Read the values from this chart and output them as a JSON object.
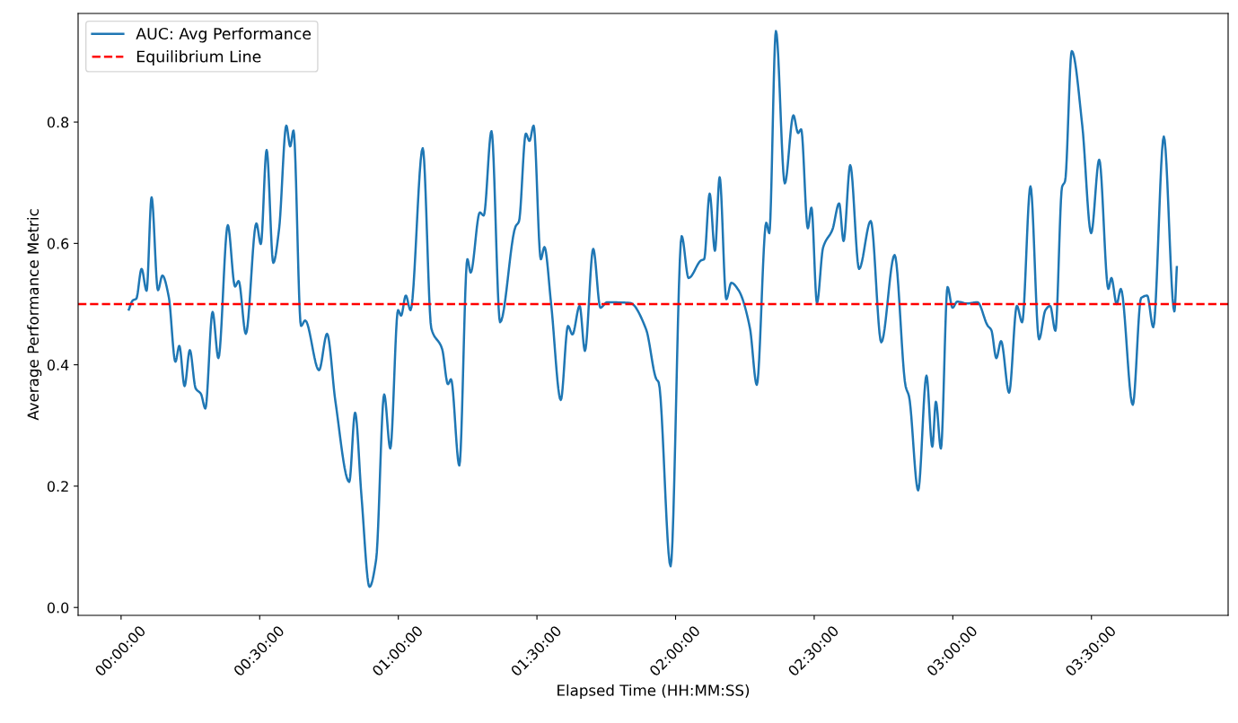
{
  "chart_data": {
    "type": "line",
    "xlabel": "Elapsed Time (HH:MM:SS)",
    "ylabel": "Average Performance Metric",
    "xlim": [
      -0.155,
      3.993
    ],
    "ylim": [
      -0.013,
      0.979
    ],
    "xticks": [
      {
        "value": 0,
        "label": "00:00:00"
      },
      {
        "value": 0.5,
        "label": "00:30:00"
      },
      {
        "value": 1,
        "label": "01:00:00"
      },
      {
        "value": 1.5,
        "label": "01:30:00"
      },
      {
        "value": 2,
        "label": "02:00:00"
      },
      {
        "value": 2.5,
        "label": "02:30:00"
      },
      {
        "value": 3,
        "label": "03:00:00"
      },
      {
        "value": 3.5,
        "label": "03:30:00"
      }
    ],
    "yticks": [
      {
        "value": 0,
        "label": "0.0"
      },
      0.2,
      0.4,
      0.6,
      0.8
    ],
    "grid": false,
    "legend": "top left",
    "line_style": "solid",
    "marker": "none",
    "ref_lines": [
      {
        "axis": "y",
        "value": 0.5,
        "label": "Equilibrium Line",
        "color": "#ff0000",
        "line_style": "dashed"
      }
    ],
    "series": [
      {
        "name": "AUC: Avg Performance",
        "color": "#1f77b4",
        "x": [
          0.028,
          0.042,
          0.055,
          0.074,
          0.092,
          0.11,
          0.133,
          0.149,
          0.172,
          0.196,
          0.21,
          0.229,
          0.248,
          0.269,
          0.288,
          0.304,
          0.33,
          0.351,
          0.385,
          0.411,
          0.424,
          0.45,
          0.488,
          0.504,
          0.525,
          0.549,
          0.57,
          0.596,
          0.61,
          0.622,
          0.649,
          0.664,
          0.714,
          0.743,
          0.773,
          0.823,
          0.844,
          0.867,
          0.896,
          0.92,
          0.949,
          0.971,
          0.999,
          1.01,
          1.027,
          1.044,
          1.088,
          1.119,
          1.158,
          1.179,
          1.19,
          1.22,
          1.249,
          1.261,
          1.294,
          1.308,
          1.336,
          1.367,
          1.423,
          1.435,
          1.46,
          1.473,
          1.488,
          1.514,
          1.527,
          1.551,
          1.586,
          1.612,
          1.628,
          1.654,
          1.673,
          1.703,
          1.729,
          1.753,
          1.835,
          1.894,
          1.93,
          1.939,
          1.982,
          2.022,
          2.047,
          2.092,
          2.103,
          2.123,
          2.142,
          2.159,
          2.183,
          2.201,
          2.227,
          2.268,
          2.293,
          2.327,
          2.338,
          2.362,
          2.394,
          2.425,
          2.442,
          2.453,
          2.477,
          2.49,
          2.51,
          2.532,
          2.566,
          2.59,
          2.606,
          2.63,
          2.662,
          2.704,
          2.742,
          2.79,
          2.83,
          2.842,
          2.875,
          2.905,
          2.926,
          2.939,
          2.957,
          2.981,
          2.999,
          3.016,
          3.051,
          3.089,
          3.125,
          3.139,
          3.157,
          3.174,
          3.203,
          3.231,
          3.25,
          3.28,
          3.311,
          3.334,
          3.351,
          3.37,
          3.394,
          3.405,
          3.429,
          3.467,
          3.499,
          3.528,
          3.561,
          3.572,
          3.591,
          3.606,
          3.649,
          3.679,
          3.701,
          3.723,
          3.761,
          3.799,
          3.808
        ],
        "values": [
          0.491,
          0.506,
          0.509,
          0.558,
          0.522,
          0.676,
          0.523,
          0.547,
          0.512,
          0.405,
          0.431,
          0.365,
          0.424,
          0.361,
          0.352,
          0.328,
          0.487,
          0.411,
          0.63,
          0.529,
          0.538,
          0.451,
          0.633,
          0.599,
          0.754,
          0.568,
          0.624,
          0.794,
          0.76,
          0.786,
          0.464,
          0.473,
          0.391,
          0.451,
          0.34,
          0.207,
          0.321,
          0.184,
          0.034,
          0.079,
          0.351,
          0.262,
          0.49,
          0.481,
          0.514,
          0.49,
          0.757,
          0.46,
          0.426,
          0.368,
          0.376,
          0.234,
          0.574,
          0.552,
          0.651,
          0.646,
          0.785,
          0.47,
          0.628,
          0.636,
          0.781,
          0.769,
          0.794,
          0.574,
          0.594,
          0.501,
          0.342,
          0.464,
          0.45,
          0.497,
          0.423,
          0.591,
          0.494,
          0.503,
          0.502,
          0.458,
          0.377,
          0.371,
          0.068,
          0.612,
          0.543,
          0.572,
          0.574,
          0.682,
          0.588,
          0.709,
          0.508,
          0.535,
          0.523,
          0.461,
          0.367,
          0.634,
          0.617,
          0.95,
          0.699,
          0.811,
          0.782,
          0.788,
          0.625,
          0.659,
          0.502,
          0.593,
          0.623,
          0.666,
          0.604,
          0.729,
          0.558,
          0.637,
          0.437,
          0.581,
          0.364,
          0.348,
          0.193,
          0.382,
          0.265,
          0.339,
          0.262,
          0.528,
          0.494,
          0.504,
          0.501,
          0.503,
          0.465,
          0.457,
          0.411,
          0.439,
          0.354,
          0.497,
          0.47,
          0.694,
          0.442,
          0.49,
          0.497,
          0.456,
          0.693,
          0.703,
          0.917,
          0.794,
          0.617,
          0.738,
          0.525,
          0.543,
          0.5,
          0.525,
          0.334,
          0.51,
          0.514,
          0.462,
          0.776,
          0.488,
          0.561
        ]
      }
    ]
  }
}
